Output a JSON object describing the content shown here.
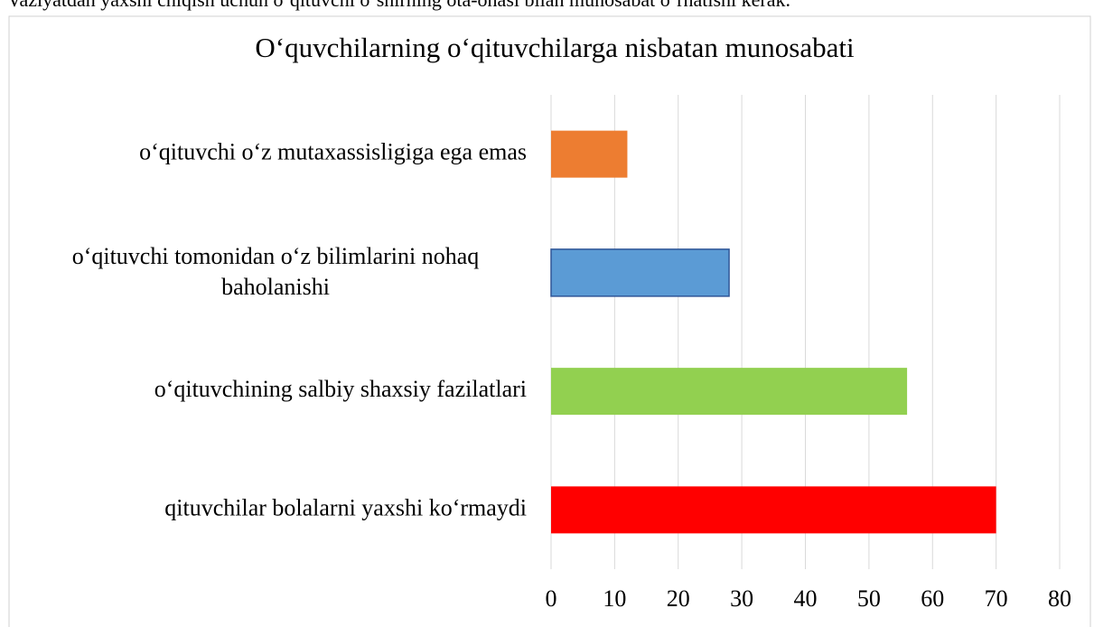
{
  "caption_text": "Vaziyatdan yaxshi chiqish uchun o‘qituvchi o‘shirning ota-onasi bilan munosabat o‘rnatishi kerak.",
  "chart_data": {
    "type": "bar",
    "orientation": "horizontal",
    "title": "O‘quvchilarning o‘qituvchilarga nisbatan munosabati",
    "categories": [
      "o‘qituvchi o‘z mutaxassisligiga ega emas",
      "o‘qituvchi tomonidan o‘z bilimlarini  nohaq baholanishi",
      "o‘qituvchining salbiy shaxsiy fazilatlari",
      "qituvchilar bolalarni yaxshi ko‘rmaydi"
    ],
    "values": [
      12,
      28,
      56,
      70
    ],
    "colors": [
      "#ED7D31",
      "#5B9BD5",
      "#92D050",
      "#FF0000"
    ],
    "xlim": [
      0,
      80
    ],
    "xticks": [
      0,
      10,
      20,
      30,
      40,
      50,
      60,
      70,
      80
    ],
    "grid": true
  }
}
